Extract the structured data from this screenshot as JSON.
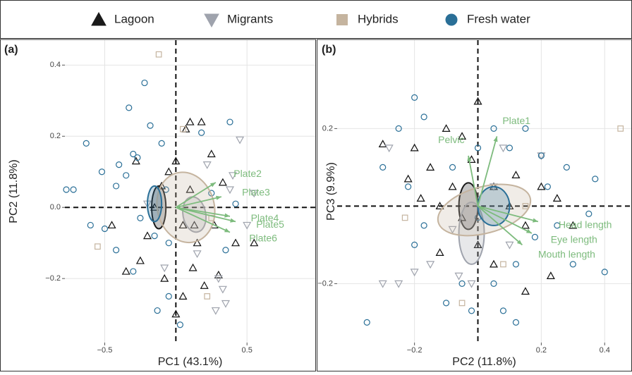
{
  "chart_data": [
    {
      "type": "scatter",
      "panel": "(a)",
      "x_label": "PC1 (43.1%)",
      "y_label": "PC2 (11.8%)",
      "xlim": [
        -0.78,
        0.98
      ],
      "ylim": [
        -0.38,
        0.47
      ],
      "xticks": [
        {
          "value": -0.5,
          "label": "−0.5"
        },
        0.5
      ],
      "yticks": [
        0.4,
        0.2,
        {
          "value": 0,
          "label": "0.0"
        },
        {
          "value": -0.2,
          "label": "−0.2"
        }
      ],
      "grid": true,
      "series": [
        {
          "name": "Lagoon",
          "color": "#1a1a1a",
          "marker": "triangle",
          "x": [
            0.07,
            0.18,
            0.1,
            0.0,
            -0.1,
            -0.15,
            0.05,
            0.15,
            0.27,
            0.33,
            -0.2,
            -0.25,
            -0.08,
            0.05,
            0.2,
            0.3,
            0.42,
            0.55,
            -0.35,
            -0.45,
            0.1,
            -0.05,
            0.12,
            0.0,
            0.25,
            0.13,
            -0.28
          ],
          "y": [
            0.22,
            0.24,
            0.24,
            0.13,
            0.06,
            0.0,
            -0.05,
            -0.1,
            -0.05,
            0.07,
            -0.08,
            -0.15,
            -0.2,
            -0.25,
            -0.22,
            -0.19,
            -0.1,
            -0.1,
            -0.18,
            -0.05,
            0.05,
            0.1,
            -0.17,
            -0.3,
            0.15,
            -0.05,
            0.13
          ],
          "ellipse": {
            "cx": -0.12,
            "cy": 0.0,
            "rx": 0.05,
            "ry": 0.06,
            "angle": 0
          }
        },
        {
          "name": "Migrants",
          "color": "#9fa3ad",
          "marker": "triangle-down",
          "x": [
            0.4,
            0.45,
            0.38,
            0.55,
            0.3,
            0.33,
            0.28,
            0.35,
            -0.08,
            0.15,
            -0.2,
            0.5,
            0.22
          ],
          "y": [
            0.09,
            0.19,
            0.05,
            0.04,
            -0.2,
            -0.23,
            -0.29,
            -0.27,
            -0.17,
            -0.13,
            0.01,
            -0.05,
            0.12
          ],
          "ellipse": {
            "cx": 0.13,
            "cy": -0.02,
            "rx": 0.08,
            "ry": 0.05,
            "angle": -10
          }
        },
        {
          "name": "Hybrids",
          "color": "#c5b49f",
          "marker": "square",
          "x": [
            -0.12,
            -0.55,
            0.05,
            0.22,
            0.25
          ],
          "y": [
            0.43,
            -0.11,
            0.22,
            -0.25,
            -0.03
          ],
          "ellipse": {
            "cx": 0.07,
            "cy": 0.0,
            "rx": 0.2,
            "ry": 0.1,
            "angle": -15
          }
        },
        {
          "name": "Fresh water",
          "color": "#2a6f97",
          "marker": "circle",
          "x": [
            -0.22,
            -0.33,
            -0.18,
            -0.63,
            -0.77,
            -0.72,
            -0.52,
            -0.4,
            -0.3,
            -0.27,
            -0.35,
            -0.42,
            -0.6,
            -0.5,
            -0.42,
            -0.25,
            -0.15,
            -0.07,
            -0.05,
            -0.1,
            0.18,
            0.38,
            0.35,
            -0.05,
            -0.13,
            0.03,
            -0.3,
            0.25,
            0.42
          ],
          "y": [
            0.35,
            0.28,
            0.23,
            0.18,
            0.05,
            0.05,
            0.1,
            0.12,
            0.15,
            0.14,
            0.09,
            0.06,
            -0.05,
            -0.06,
            -0.12,
            -0.03,
            -0.08,
            0.05,
            -0.1,
            0.18,
            0.21,
            0.24,
            -0.12,
            -0.25,
            -0.29,
            -0.33,
            -0.18,
            0.04,
            0.01
          ],
          "ellipse": {
            "cx": -0.15,
            "cy": 0.01,
            "rx": 0.05,
            "ry": 0.05,
            "angle": 0
          }
        }
      ],
      "loadings": [
        {
          "label": "Plate2",
          "x": 0.28,
          "y": 0.07
        },
        {
          "label": "Plate3",
          "x": 0.32,
          "y": 0.03
        },
        {
          "label": "Plate4",
          "x": 0.38,
          "y": -0.025
        },
        {
          "label": "Plate5",
          "x": 0.42,
          "y": -0.04
        },
        {
          "label": "Plate6",
          "x": 0.38,
          "y": -0.07
        }
      ]
    },
    {
      "type": "scatter",
      "panel": "(b)",
      "x_label": "PC2 (11.8%)",
      "y_label": "PC3 (9.9%)",
      "xlim": [
        -0.444,
        0.484
      ],
      "ylim": [
        -0.352,
        0.428
      ],
      "xticks": [
        {
          "value": -0.2,
          "label": "−0.2"
        },
        0.2,
        0.4
      ],
      "yticks": [
        0.2,
        {
          "value": -0.2,
          "label": "−0.2"
        }
      ],
      "grid": true,
      "series": [
        {
          "color": "#1a1a1a",
          "marker": "triangle",
          "x": [
            -0.2,
            -0.15,
            -0.1,
            -0.05,
            0.0,
            -0.08,
            -0.12,
            -0.05,
            0.0,
            -0.12,
            0.05,
            0.1,
            0.15,
            0.2,
            0.25,
            0.3,
            0.15,
            0.05,
            -0.22,
            -0.3,
            0.23,
            0.12,
            -0.02,
            -0.18
          ],
          "y": [
            0.15,
            0.1,
            0.2,
            0.18,
            0.27,
            0.05,
            0.0,
            -0.03,
            -0.1,
            -0.12,
            0.05,
            0.0,
            -0.05,
            0.05,
            0.02,
            -0.05,
            -0.22,
            -0.15,
            0.07,
            0.16,
            -0.18,
            0.08,
            0.12,
            0.02
          ],
          "ellipse": {
            "cx": -0.03,
            "cy": 0.0,
            "rx": 0.03,
            "ry": 0.06,
            "angle": 0
          }
        },
        {
          "color": "#9fa3ad",
          "marker": "triangle-down",
          "x": [
            -0.28,
            -0.15,
            -0.2,
            -0.25,
            -0.3,
            -0.06,
            -0.02,
            0.08,
            -0.08,
            0.1,
            0.2,
            0.05
          ],
          "y": [
            0.15,
            -0.15,
            -0.17,
            -0.2,
            -0.2,
            -0.18,
            -0.2,
            0.15,
            -0.06,
            -0.1,
            0.13,
            0.05
          ],
          "ellipse": {
            "cx": -0.02,
            "cy": -0.07,
            "rx": 0.04,
            "ry": 0.08,
            "angle": 0
          }
        },
        {
          "color": "#c5b49f",
          "marker": "square",
          "x": [
            0.45,
            -0.23,
            -0.05,
            0.08,
            0.15
          ],
          "y": [
            0.2,
            -0.03,
            -0.25,
            -0.15,
            0.0
          ],
          "ellipse": {
            "cx": 0.02,
            "cy": -0.01,
            "rx": 0.15,
            "ry": 0.06,
            "angle": -15
          }
        },
        {
          "color": "#2a6f97",
          "marker": "circle",
          "x": [
            -0.35,
            -0.25,
            -0.2,
            -0.17,
            -0.3,
            -0.22,
            -0.2,
            -0.17,
            -0.1,
            -0.05,
            0.0,
            0.05,
            0.1,
            0.15,
            0.2,
            0.28,
            0.37,
            0.4,
            0.35,
            0.25,
            0.18,
            0.12,
            0.05,
            0.12,
            0.08,
            -0.02,
            0.22,
            0.3,
            -0.08,
            0.0
          ],
          "y": [
            -0.3,
            0.2,
            0.28,
            0.23,
            0.1,
            0.05,
            -0.1,
            -0.05,
            -0.25,
            -0.2,
            0.15,
            0.2,
            0.15,
            0.2,
            0.13,
            0.1,
            0.07,
            -0.17,
            -0.02,
            -0.05,
            -0.08,
            -0.15,
            -0.2,
            -0.3,
            -0.27,
            -0.27,
            0.05,
            -0.15,
            0.1,
            -0.03
          ],
          "ellipse": {
            "cx": 0.05,
            "cy": 0.0,
            "rx": 0.05,
            "ry": 0.05,
            "angle": 0
          }
        }
      ],
      "loadings": [
        {
          "label": "Pelvic",
          "x": -0.03,
          "y": 0.13
        },
        {
          "label": "Plate1",
          "x": 0.06,
          "y": 0.18
        },
        {
          "label": "Head length",
          "x": 0.19,
          "y": -0.04
        },
        {
          "label": "Eye length",
          "x": 0.17,
          "y": -0.07
        },
        {
          "label": "Mouth length",
          "x": 0.14,
          "y": -0.1
        }
      ]
    }
  ]
}
